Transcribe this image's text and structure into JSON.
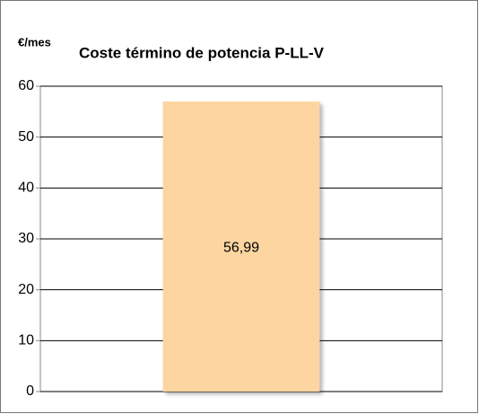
{
  "chart_data": {
    "type": "bar",
    "title": "Coste término de potencia P-LL-V",
    "y_label": "€/mes",
    "categories": [
      null
    ],
    "values": [
      56.99
    ],
    "value_labels": [
      "56,99"
    ],
    "color": "#fcd5a0",
    "ylim": [
      0,
      60
    ],
    "yticks": [
      0,
      10,
      20,
      30,
      40,
      50,
      60
    ],
    "grid": true
  }
}
